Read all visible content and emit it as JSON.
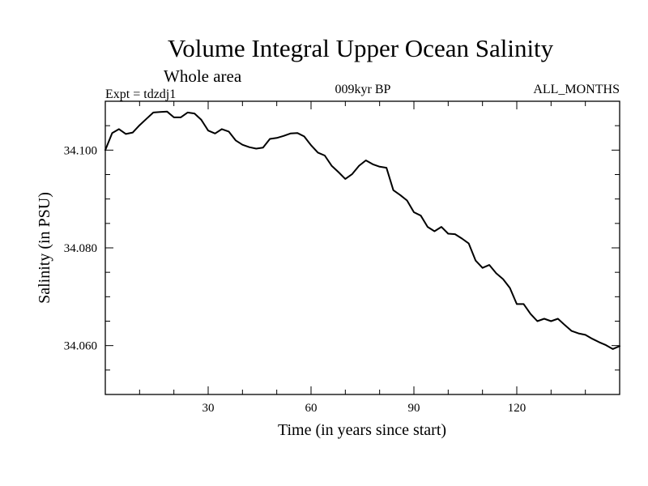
{
  "chart_data": {
    "type": "line",
    "title": "Volume Integral Upper Ocean Salinity",
    "subtitle": "Whole area",
    "annotations": {
      "left": "Expt = tdzdj1",
      "center": "009kyr BP",
      "right": "ALL_MONTHS"
    },
    "xlabel": "Time (in years since start)",
    "ylabel": "Salinity (in PSU)",
    "xlim": [
      0,
      150
    ],
    "ylim": [
      34.05,
      34.11
    ],
    "xticks": [
      30,
      60,
      90,
      120
    ],
    "xtick_labels": [
      "30",
      "60",
      "90",
      "120"
    ],
    "yticks": [
      34.06,
      34.08,
      34.1
    ],
    "ytick_labels": [
      "34.060",
      "34.080",
      "34.100"
    ],
    "grid": false,
    "series": [
      {
        "x": [
          0,
          2,
          4,
          6,
          8,
          10,
          12,
          14,
          16,
          18,
          20,
          22,
          24,
          26,
          28,
          30,
          32,
          34,
          36,
          38,
          40,
          42,
          44,
          46,
          48,
          50,
          52,
          54,
          56,
          58,
          60,
          62,
          64,
          66,
          68,
          70,
          72,
          74,
          76,
          78,
          80,
          82,
          84,
          86,
          88,
          90,
          92,
          94,
          96,
          98,
          100,
          102,
          104,
          106,
          108,
          110,
          112,
          114,
          116,
          118,
          120,
          122,
          124,
          126,
          128,
          130,
          132,
          134,
          136,
          138,
          140,
          142,
          144,
          146,
          148,
          150
        ],
        "y": [
          34.1,
          34.1035,
          34.1043,
          34.1033,
          34.1036,
          34.1051,
          34.1064,
          34.1077,
          34.1078,
          34.1079,
          34.1067,
          34.1067,
          34.1077,
          34.1075,
          34.1062,
          34.104,
          34.1034,
          34.1043,
          34.1038,
          34.102,
          34.1011,
          34.1006,
          34.1003,
          34.1005,
          34.1023,
          34.1025,
          34.1029,
          34.1034,
          34.1035,
          34.1028,
          34.101,
          34.0995,
          34.0989,
          34.0968,
          34.0955,
          34.0941,
          34.0951,
          34.0968,
          34.0979,
          34.0971,
          34.0966,
          34.0964,
          34.0918,
          34.0908,
          34.0897,
          34.0873,
          34.0866,
          34.0843,
          34.0834,
          34.0843,
          34.0829,
          34.0828,
          34.0819,
          34.0809,
          34.0774,
          34.0759,
          34.0765,
          34.0748,
          34.0736,
          34.0718,
          34.0685,
          34.0685,
          34.0665,
          34.065,
          34.0655,
          34.065,
          34.0655,
          34.0642,
          34.063,
          34.0625,
          34.0622,
          34.0614,
          34.0607,
          34.0601,
          34.0593,
          34.0599
        ]
      }
    ]
  }
}
